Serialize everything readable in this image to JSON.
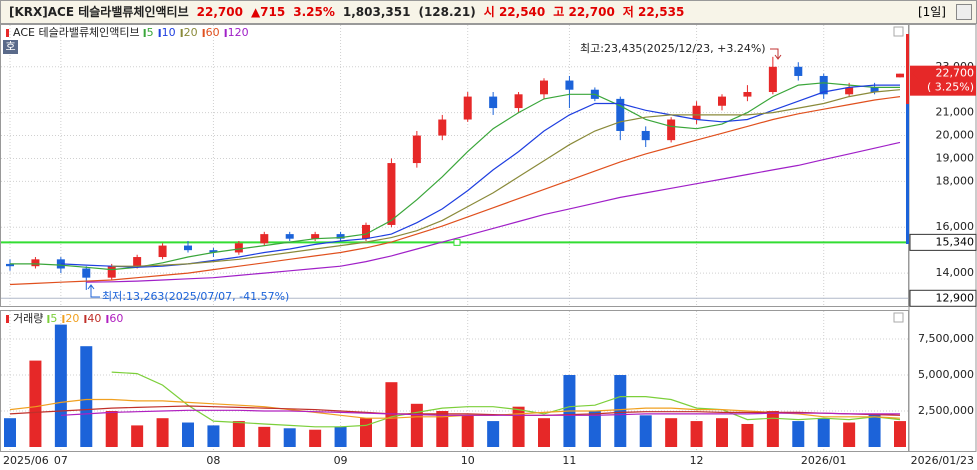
{
  "header": {
    "fields": [
      {
        "text": "[KRX]ACE 테슬라밸류체인액티브",
        "color": "#222222"
      },
      {
        "text": "22,700",
        "color": "#e00000"
      },
      {
        "text": "▲715",
        "color": "#e00000"
      },
      {
        "text": "3.25%",
        "color": "#e00000"
      },
      {
        "text": "1,803,351",
        "color": "#222222"
      },
      {
        "text": "(128.21)",
        "color": "#222222"
      },
      {
        "text": "시 22,540",
        "color": "#e00000"
      },
      {
        "text": "고 22,700",
        "color": "#e00000"
      },
      {
        "text": "저 22,535",
        "color": "#e00000"
      }
    ],
    "period": "[1일]"
  },
  "chart_data": [
    {
      "type": "candlestick",
      "badge": "호",
      "name": "ACE 테슬라밸류체인액티브",
      "up_color": "#e62828",
      "down_color": "#1c63d9",
      "categories": [
        "2025/06",
        null,
        "07",
        null,
        null,
        null,
        null,
        null,
        "08",
        null,
        null,
        null,
        null,
        "09",
        null,
        null,
        null,
        null,
        "10",
        null,
        null,
        null,
        "11",
        null,
        null,
        null,
        null,
        "12",
        null,
        null,
        null,
        null,
        "2026/01",
        null,
        null,
        null
      ],
      "end_label": "2026/01/23",
      "open": [
        14400,
        14300,
        14600,
        14200,
        13800,
        14300,
        14700,
        15200,
        15000,
        14900,
        15300,
        15700,
        15500,
        15700,
        15500,
        16100,
        18800,
        20000,
        20700,
        21700,
        21200,
        21800,
        22400,
        22000,
        21600,
        20200,
        19800,
        20700,
        21300,
        21700,
        21900,
        23000,
        22600,
        21800,
        22100,
        22540
      ],
      "high": [
        14600,
        14700,
        14700,
        14300,
        14400,
        14800,
        15300,
        15400,
        15100,
        15400,
        15800,
        15800,
        15800,
        15800,
        16200,
        19000,
        20200,
        20900,
        21900,
        21900,
        21900,
        22500,
        22600,
        22100,
        21700,
        20400,
        20800,
        21500,
        21800,
        22200,
        23435,
        23200,
        22700,
        22300,
        22300,
        22700
      ],
      "low": [
        14100,
        14200,
        14000,
        13263,
        13700,
        14200,
        14600,
        14900,
        14700,
        14800,
        15200,
        15400,
        15400,
        15400,
        15400,
        16000,
        18600,
        19800,
        20600,
        20900,
        21000,
        21600,
        21200,
        21500,
        19800,
        19500,
        19700,
        20500,
        21100,
        21500,
        21800,
        22400,
        21600,
        21700,
        21800,
        22535
      ],
      "close": [
        14300,
        14600,
        14200,
        13800,
        14300,
        14700,
        15200,
        15000,
        14900,
        15300,
        15700,
        15500,
        15700,
        15500,
        16100,
        18800,
        20000,
        20700,
        21700,
        21200,
        21800,
        22400,
        22000,
        21600,
        20200,
        19800,
        20700,
        21300,
        21700,
        21900,
        23000,
        22600,
        21800,
        22100,
        21900,
        22700
      ],
      "series": [
        {
          "name": "5",
          "color": "#3aa63a",
          "values": [
            14400,
            14400,
            14350,
            14250,
            14150,
            14250,
            14450,
            14700,
            14900,
            15050,
            15200,
            15350,
            15500,
            15550,
            15700,
            16300,
            17200,
            18200,
            19300,
            20300,
            21000,
            21600,
            21800,
            21800,
            21300,
            20700,
            20400,
            20300,
            20500,
            21000,
            21700,
            22200,
            22300,
            22200,
            22100,
            22100
          ]
        },
        {
          "name": "10",
          "color": "#1f3fe0",
          "values": [
            null,
            null,
            14400,
            14350,
            14300,
            14250,
            14300,
            14400,
            14550,
            14700,
            14900,
            15050,
            15250,
            15400,
            15500,
            15700,
            16200,
            16800,
            17600,
            18500,
            19300,
            20200,
            20900,
            21400,
            21400,
            21100,
            20900,
            20700,
            20600,
            20700,
            21100,
            21500,
            21900,
            22100,
            22200,
            22200
          ]
        },
        {
          "name": "20",
          "color": "#8a8a3a",
          "values": [
            null,
            null,
            null,
            null,
            14300,
            14300,
            14350,
            14400,
            14500,
            14600,
            14750,
            14900,
            15050,
            15200,
            15350,
            15550,
            15850,
            16300,
            16900,
            17500,
            18200,
            18900,
            19600,
            20200,
            20600,
            20800,
            20900,
            20900,
            20900,
            20900,
            21000,
            21200,
            21400,
            21700,
            21900,
            22000
          ]
        },
        {
          "name": "60",
          "color": "#e0501e",
          "values": [
            13500,
            13550,
            13600,
            13650,
            13700,
            13800,
            13900,
            14000,
            14150,
            14300,
            14450,
            14600,
            14750,
            14900,
            15100,
            15350,
            15700,
            16050,
            16450,
            16850,
            17250,
            17650,
            18050,
            18450,
            18850,
            19200,
            19500,
            19800,
            20100,
            20400,
            20700,
            20950,
            21150,
            21350,
            21550,
            21700
          ]
        },
        {
          "name": "120",
          "color": "#a020c8",
          "values": [
            null,
            null,
            null,
            13600,
            13620,
            13650,
            13700,
            13750,
            13800,
            13900,
            14000,
            14100,
            14200,
            14300,
            14500,
            14750,
            15050,
            15350,
            15650,
            15950,
            16250,
            16550,
            16800,
            17050,
            17300,
            17500,
            17700,
            17900,
            18100,
            18300,
            18500,
            18700,
            18950,
            19200,
            19450,
            19700
          ]
        }
      ],
      "ylim": [
        12520,
        24780
      ],
      "yticks": [
        {
          "value": 14000,
          "label": "14,000"
        },
        {
          "value": 16000,
          "label": "16,000"
        },
        {
          "value": 18000,
          "label": "18,000"
        },
        {
          "value": 19000,
          "label": "19,000"
        },
        {
          "value": 20000,
          "label": "20,000"
        },
        {
          "value": 21000,
          "label": "21,000"
        },
        {
          "value": 23000,
          "label": "23,000"
        }
      ],
      "hlines": [
        {
          "value": 15340,
          "label": "15,340",
          "color": "#33dd33"
        },
        {
          "value": 12900,
          "label": "12,900",
          "color": "#b0b8c8"
        }
      ],
      "current": {
        "value": 22700,
        "label": "22,700",
        "change": "( 3.25%)"
      },
      "annotations": {
        "high": "최고:23,435(2025/12/23, +3.24%)",
        "low": "최저:13,263(2025/07/07, -41.57%)"
      },
      "grid": true
    },
    {
      "type": "bar",
      "name": "거래량",
      "values": [
        2000000,
        6000000,
        8500000,
        7000000,
        2500000,
        1500000,
        2000000,
        1700000,
        1500000,
        1800000,
        1400000,
        1300000,
        1200000,
        1400000,
        2000000,
        4500000,
        3000000,
        2500000,
        2200000,
        1800000,
        2800000,
        2000000,
        5000000,
        2500000,
        5000000,
        2200000,
        2000000,
        1800000,
        2000000,
        1600000,
        2500000,
        1800000,
        2000000,
        1700000,
        2300000,
        1800000
      ],
      "series": [
        {
          "name": "5",
          "color": "#7ccf3a",
          "values": [
            null,
            null,
            null,
            null,
            5200000,
            5100000,
            4300000,
            2900000,
            1800000,
            1700000,
            1600000,
            1500000,
            1400000,
            1400000,
            1500000,
            2100000,
            2400000,
            2700000,
            2800000,
            2800000,
            2600000,
            2300000,
            2800000,
            2900000,
            3500000,
            3500000,
            3300000,
            2700000,
            2600000,
            1900000,
            2000000,
            1900000,
            2000000,
            1900000,
            2100000,
            1900000
          ]
        },
        {
          "name": "20",
          "color": "#f0a020",
          "values": [
            2600000,
            2800000,
            3100000,
            3300000,
            3300000,
            3200000,
            3200000,
            3100000,
            3000000,
            2900000,
            2800000,
            2600000,
            2400000,
            2200000,
            2000000,
            2000000,
            2100000,
            2100000,
            2200000,
            2200000,
            2300000,
            2400000,
            2500000,
            2500000,
            2600000,
            2700000,
            2700000,
            2600000,
            2600000,
            2500000,
            2400000,
            2300000,
            2100000,
            2100000,
            2100000,
            2000000
          ]
        },
        {
          "name": "40",
          "color": "#c0302a",
          "values": [
            2300000,
            2400000,
            2500000,
            2600000,
            2700000,
            2750000,
            2800000,
            2850000,
            2800000,
            2750000,
            2700000,
            2650000,
            2600000,
            2500000,
            2400000,
            2300000,
            2300000,
            2300000,
            2300000,
            2250000,
            2200000,
            2200000,
            2250000,
            2300000,
            2400000,
            2450000,
            2450000,
            2450000,
            2400000,
            2400000,
            2400000,
            2400000,
            2350000,
            2300000,
            2250000,
            2200000
          ]
        },
        {
          "name": "60",
          "color": "#b020c0",
          "values": [
            null,
            null,
            2200000,
            2300000,
            2400000,
            2450000,
            2500000,
            2550000,
            2550000,
            2550000,
            2500000,
            2500000,
            2450000,
            2400000,
            2350000,
            2300000,
            2250000,
            2200000,
            2200000,
            2200000,
            2200000,
            2200000,
            2200000,
            2200000,
            2250000,
            2300000,
            2300000,
            2300000,
            2300000,
            2300000,
            2350000,
            2350000,
            2350000,
            2300000,
            2300000,
            2300000
          ]
        }
      ],
      "ylim": [
        0,
        9375000
      ],
      "yticks": [
        {
          "value": 2500000,
          "label": "2,500,000"
        },
        {
          "value": 5000000,
          "label": "5,000,000"
        },
        {
          "value": 7500000,
          "label": "7,500,000"
        }
      ],
      "grid": true
    }
  ]
}
